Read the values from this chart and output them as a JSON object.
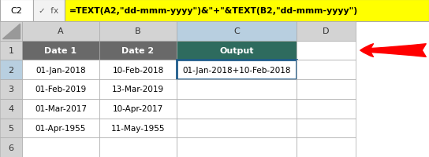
{
  "formula_bar_cell": "C2",
  "formula_bar_text": "=TEXT(A2,\"dd-mmm-yyyy\")&\"+\"&TEXT(B2,\"dd-mmm-yyyy\")",
  "formula_bar_bg": "#FFFF00",
  "col_headers": [
    "A",
    "B",
    "C",
    "D"
  ],
  "row_headers": [
    "1",
    "2",
    "3",
    "4",
    "5",
    "6"
  ],
  "header_row": [
    "Date 1",
    "Date 2",
    "Output",
    ""
  ],
  "header_bg": "#696969",
  "header_fg": "#FFFFFF",
  "col_c_header_bg": "#2E6B5E",
  "data": [
    [
      "01-Jan-2018",
      "10-Feb-2018",
      "01-Jan-2018+10-Feb-2018",
      ""
    ],
    [
      "01-Feb-2019",
      "13-Mar-2019",
      "",
      ""
    ],
    [
      "01-Mar-2017",
      "10-Apr-2017",
      "",
      ""
    ],
    [
      "01-Apr-1955",
      "11-May-1955",
      "",
      ""
    ],
    [
      "",
      "",
      "",
      ""
    ]
  ],
  "selected_cell_border_color": "#1F5C8B",
  "arrow_color": "#FF0000",
  "cell_bg": "#FFFFFF",
  "row_header_bg": "#D3D3D3",
  "col_header_row_bg": "#D3D3D3"
}
